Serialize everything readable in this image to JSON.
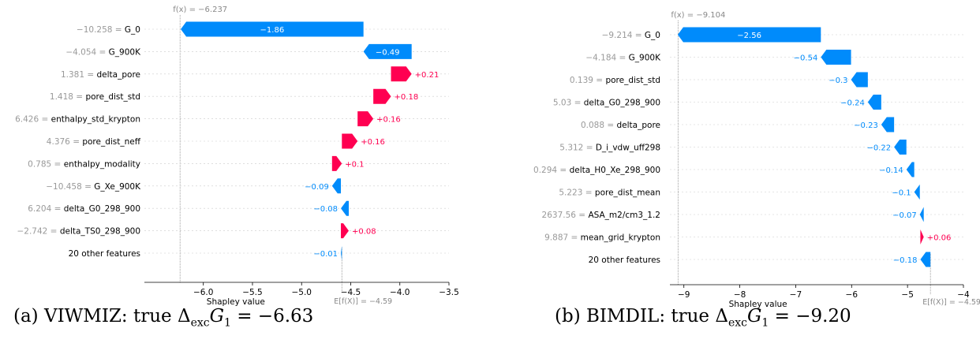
{
  "chart_data": [
    {
      "type": "waterfall",
      "fx_label": "f(x) = −6.237",
      "fx": -6.237,
      "base_label": "E[f(X)] = −4.59",
      "base": -4.59,
      "xlabel": "Shapley value",
      "xlim": [
        -6.6,
        -3.5
      ],
      "ticks": [
        -6.0,
        -5.5,
        -5.0,
        -4.5,
        -4.0,
        -3.5
      ],
      "tick_labels": [
        "−6.0",
        "−5.5",
        "−5.0",
        "−4.5",
        "−4.0",
        "−3.5"
      ],
      "features": [
        {
          "value": "−10.258",
          "name": "G_0",
          "shap": -1.86,
          "label": "−1.86"
        },
        {
          "value": "−4.054",
          "name": "G_900K",
          "shap": -0.49,
          "label": "−0.49"
        },
        {
          "value": "1.381",
          "name": "delta_pore",
          "shap": 0.21,
          "label": "+0.21"
        },
        {
          "value": "1.418",
          "name": "pore_dist_std",
          "shap": 0.18,
          "label": "+0.18"
        },
        {
          "value": "6.426",
          "name": "enthalpy_std_krypton",
          "shap": 0.16,
          "label": "+0.16"
        },
        {
          "value": "4.376",
          "name": "pore_dist_neff",
          "shap": 0.16,
          "label": "+0.16"
        },
        {
          "value": "0.785",
          "name": "enthalpy_modality",
          "shap": 0.1,
          "label": "+0.1"
        },
        {
          "value": "−10.458",
          "name": "G_Xe_900K",
          "shap": -0.09,
          "label": "−0.09"
        },
        {
          "value": "6.204",
          "name": "delta_G0_298_900",
          "shap": -0.08,
          "label": "−0.08"
        },
        {
          "value": "−2.742",
          "name": "delta_TS0_298_900",
          "shap": 0.08,
          "label": "+0.08"
        },
        {
          "value": "",
          "name": "20 other features",
          "shap": -0.01,
          "label": "−0.01"
        }
      ],
      "caption": "(a) VIWMIZ: true Δ",
      "caption_sub": "exc",
      "caption_rest": "G",
      "caption_sub2": "1",
      "caption_tail": " = −6.63"
    },
    {
      "type": "waterfall",
      "fx_label": "f(x) = −9.104",
      "fx": -9.104,
      "base_label": "E[f(X)] = −4.59",
      "base": -4.59,
      "xlabel": "Shapley value",
      "xlim": [
        -9.25,
        -4.0
      ],
      "ticks": [
        -9,
        -8,
        -7,
        -6,
        -5,
        -4
      ],
      "tick_labels": [
        "−9",
        "−8",
        "−7",
        "−6",
        "−5",
        "−4"
      ],
      "features": [
        {
          "value": "−9.214",
          "name": "G_0",
          "shap": -2.56,
          "label": "−2.56"
        },
        {
          "value": "−4.184",
          "name": "G_900K",
          "shap": -0.54,
          "label": "−0.54"
        },
        {
          "value": "0.139",
          "name": "pore_dist_std",
          "shap": -0.3,
          "label": "−0.3"
        },
        {
          "value": "5.03",
          "name": "delta_G0_298_900",
          "shap": -0.24,
          "label": "−0.24"
        },
        {
          "value": "0.088",
          "name": "delta_pore",
          "shap": -0.23,
          "label": "−0.23"
        },
        {
          "value": "5.312",
          "name": "D_i_vdw_uff298",
          "shap": -0.22,
          "label": "−0.22"
        },
        {
          "value": "0.294",
          "name": "delta_H0_Xe_298_900",
          "shap": -0.14,
          "label": "−0.14"
        },
        {
          "value": "5.223",
          "name": "pore_dist_mean",
          "shap": -0.1,
          "label": "−0.1"
        },
        {
          "value": "2637.56",
          "name": "ASA_m2/cm3_1.2",
          "shap": -0.07,
          "label": "−0.07"
        },
        {
          "value": "9.887",
          "name": "mean_grid_krypton",
          "shap": 0.06,
          "label": "+0.06"
        },
        {
          "value": "",
          "name": "20 other features",
          "shap": -0.18,
          "label": "−0.18"
        }
      ],
      "caption": "(b) BIMDIL: true Δ",
      "caption_sub": "exc",
      "caption_rest": "G",
      "caption_sub2": "1",
      "caption_tail": " = −9.20"
    }
  ]
}
